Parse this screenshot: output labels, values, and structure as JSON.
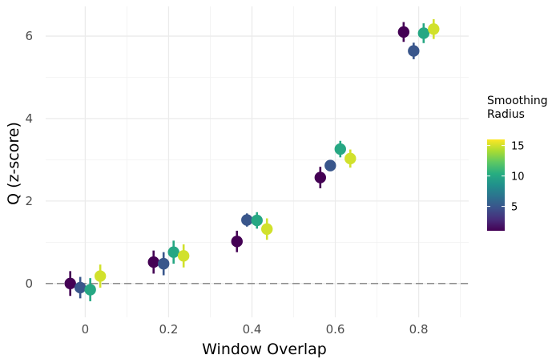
{
  "chart_data": {
    "type": "scatter",
    "xlabel": "Window Overlap",
    "ylabel": "Q (z-score)",
    "xlim": [
      -0.095,
      0.92
    ],
    "ylim": [
      -0.82,
      6.72
    ],
    "x_ticks": [
      0,
      0.2,
      0.4,
      0.6,
      0.8
    ],
    "x_tick_labels": [
      "0",
      "0.2",
      "0.4",
      "0.6",
      "0.8"
    ],
    "y_ticks": [
      0,
      2,
      4,
      6
    ],
    "y_tick_labels": [
      "0",
      "2",
      "4",
      "6"
    ],
    "grid": true,
    "reference_line": {
      "y": 0,
      "style": "dashed"
    },
    "legend": {
      "title": "Smoothing\nRadius",
      "type": "colorbar",
      "palette": "viridis",
      "range": [
        1,
        16
      ],
      "breaks": [
        5,
        10,
        15
      ],
      "break_labels": [
        "5",
        "10",
        "15"
      ],
      "position": "right"
    },
    "points": [
      {
        "x": -0.036,
        "y": 0.0,
        "lo": -0.3,
        "hi": 0.3,
        "radius": 1
      },
      {
        "x": -0.012,
        "y": -0.1,
        "lo": -0.36,
        "hi": 0.16,
        "radius": 5
      },
      {
        "x": 0.012,
        "y": -0.15,
        "lo": -0.43,
        "hi": 0.13,
        "radius": 10
      },
      {
        "x": 0.036,
        "y": 0.18,
        "lo": -0.1,
        "hi": 0.46,
        "radius": 15
      },
      {
        "x": 0.164,
        "y": 0.52,
        "lo": 0.24,
        "hi": 0.8,
        "radius": 1
      },
      {
        "x": 0.188,
        "y": 0.48,
        "lo": 0.2,
        "hi": 0.76,
        "radius": 5
      },
      {
        "x": 0.212,
        "y": 0.76,
        "lo": 0.48,
        "hi": 1.04,
        "radius": 10
      },
      {
        "x": 0.236,
        "y": 0.67,
        "lo": 0.39,
        "hi": 0.95,
        "radius": 15
      },
      {
        "x": 0.364,
        "y": 1.02,
        "lo": 0.76,
        "hi": 1.28,
        "radius": 1
      },
      {
        "x": 0.388,
        "y": 1.54,
        "lo": 1.38,
        "hi": 1.7,
        "radius": 5
      },
      {
        "x": 0.412,
        "y": 1.53,
        "lo": 1.33,
        "hi": 1.73,
        "radius": 10
      },
      {
        "x": 0.436,
        "y": 1.32,
        "lo": 1.06,
        "hi": 1.58,
        "radius": 15
      },
      {
        "x": 0.564,
        "y": 2.57,
        "lo": 2.31,
        "hi": 2.83,
        "radius": 1
      },
      {
        "x": 0.588,
        "y": 2.86,
        "lo": 2.76,
        "hi": 2.96,
        "radius": 5
      },
      {
        "x": 0.612,
        "y": 3.26,
        "lo": 3.06,
        "hi": 3.46,
        "radius": 10
      },
      {
        "x": 0.636,
        "y": 3.03,
        "lo": 2.81,
        "hi": 3.25,
        "radius": 15
      },
      {
        "x": 0.764,
        "y": 6.1,
        "lo": 5.86,
        "hi": 6.34,
        "radius": 1
      },
      {
        "x": 0.788,
        "y": 5.64,
        "lo": 5.44,
        "hi": 5.84,
        "radius": 5
      },
      {
        "x": 0.812,
        "y": 6.07,
        "lo": 5.83,
        "hi": 6.31,
        "radius": 10
      },
      {
        "x": 0.836,
        "y": 6.17,
        "lo": 5.93,
        "hi": 6.41,
        "radius": 15
      }
    ]
  }
}
